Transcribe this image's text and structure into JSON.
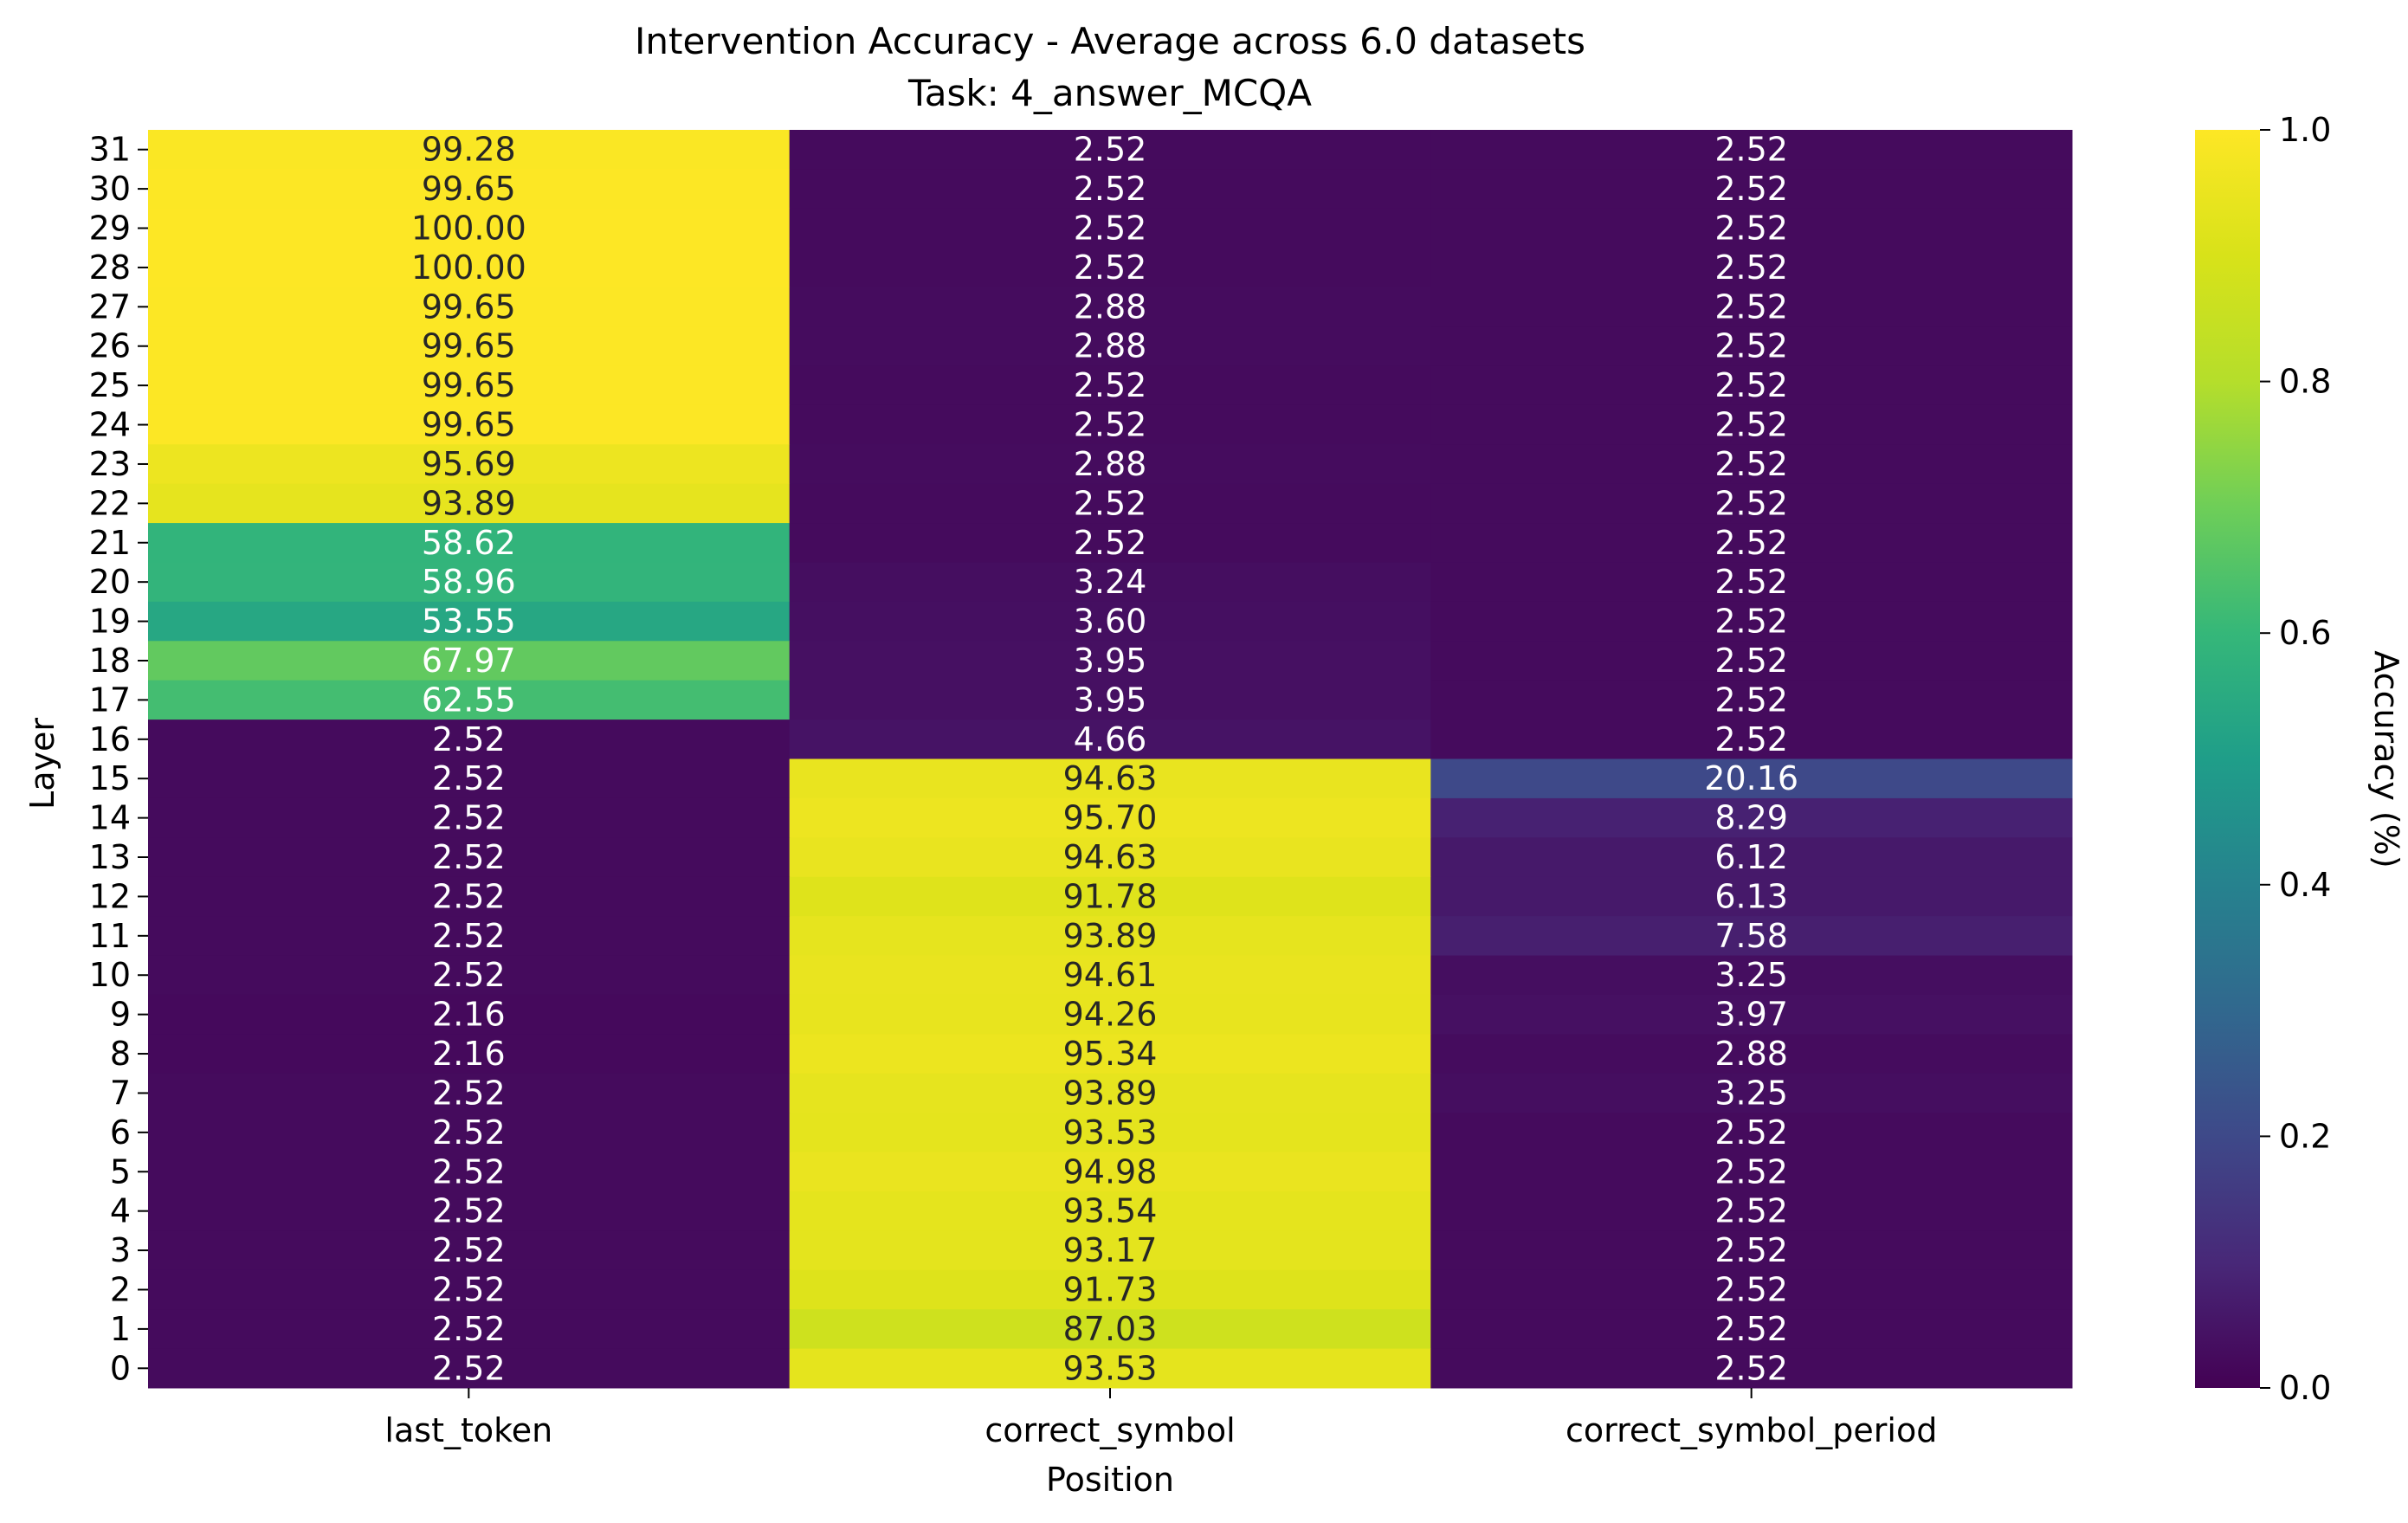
{
  "chart_data": {
    "type": "heatmap",
    "title": "Intervention Accuracy - Average across 6.0 datasets",
    "subtitle": "Task: 4_answer_MCQA",
    "xlabel": "Position",
    "ylabel": "Layer",
    "x_categories": [
      "last_token",
      "correct_symbol",
      "correct_symbol_period"
    ],
    "y_categories": [
      "31",
      "30",
      "29",
      "28",
      "27",
      "26",
      "25",
      "24",
      "23",
      "22",
      "21",
      "20",
      "19",
      "18",
      "17",
      "16",
      "15",
      "14",
      "13",
      "12",
      "11",
      "10",
      "9",
      "8",
      "7",
      "6",
      "5",
      "4",
      "3",
      "2",
      "1",
      "0"
    ],
    "values": [
      [
        "99.28",
        "2.52",
        "2.52"
      ],
      [
        "99.65",
        "2.52",
        "2.52"
      ],
      [
        "100.00",
        "2.52",
        "2.52"
      ],
      [
        "100.00",
        "2.52",
        "2.52"
      ],
      [
        "99.65",
        "2.88",
        "2.52"
      ],
      [
        "99.65",
        "2.88",
        "2.52"
      ],
      [
        "99.65",
        "2.52",
        "2.52"
      ],
      [
        "99.65",
        "2.52",
        "2.52"
      ],
      [
        "95.69",
        "2.88",
        "2.52"
      ],
      [
        "93.89",
        "2.52",
        "2.52"
      ],
      [
        "58.62",
        "2.52",
        "2.52"
      ],
      [
        "58.96",
        "3.24",
        "2.52"
      ],
      [
        "53.55",
        "3.60",
        "2.52"
      ],
      [
        "67.97",
        "3.95",
        "2.52"
      ],
      [
        "62.55",
        "3.95",
        "2.52"
      ],
      [
        "2.52",
        "4.66",
        "2.52"
      ],
      [
        "2.52",
        "94.63",
        "20.16"
      ],
      [
        "2.52",
        "95.70",
        "8.29"
      ],
      [
        "2.52",
        "94.63",
        "6.12"
      ],
      [
        "2.52",
        "91.78",
        "6.13"
      ],
      [
        "2.52",
        "93.89",
        "7.58"
      ],
      [
        "2.52",
        "94.61",
        "3.25"
      ],
      [
        "2.16",
        "94.26",
        "3.97"
      ],
      [
        "2.16",
        "95.34",
        "2.88"
      ],
      [
        "2.52",
        "93.89",
        "3.25"
      ],
      [
        "2.52",
        "93.53",
        "2.52"
      ],
      [
        "2.52",
        "94.98",
        "2.52"
      ],
      [
        "2.52",
        "93.54",
        "2.52"
      ],
      [
        "2.52",
        "93.17",
        "2.52"
      ],
      [
        "2.52",
        "91.73",
        "2.52"
      ],
      [
        "2.52",
        "87.03",
        "2.52"
      ],
      [
        "2.52",
        "93.53",
        "2.52"
      ]
    ],
    "colorbar": {
      "label": "Accuracy (%)",
      "range": [
        0.0,
        1.0
      ],
      "ticks": [
        "0.0",
        "0.2",
        "0.4",
        "0.6",
        "0.8",
        "1.0"
      ],
      "colormap": "viridis"
    },
    "grid": false,
    "annotations": "cell values shown in each cell"
  }
}
